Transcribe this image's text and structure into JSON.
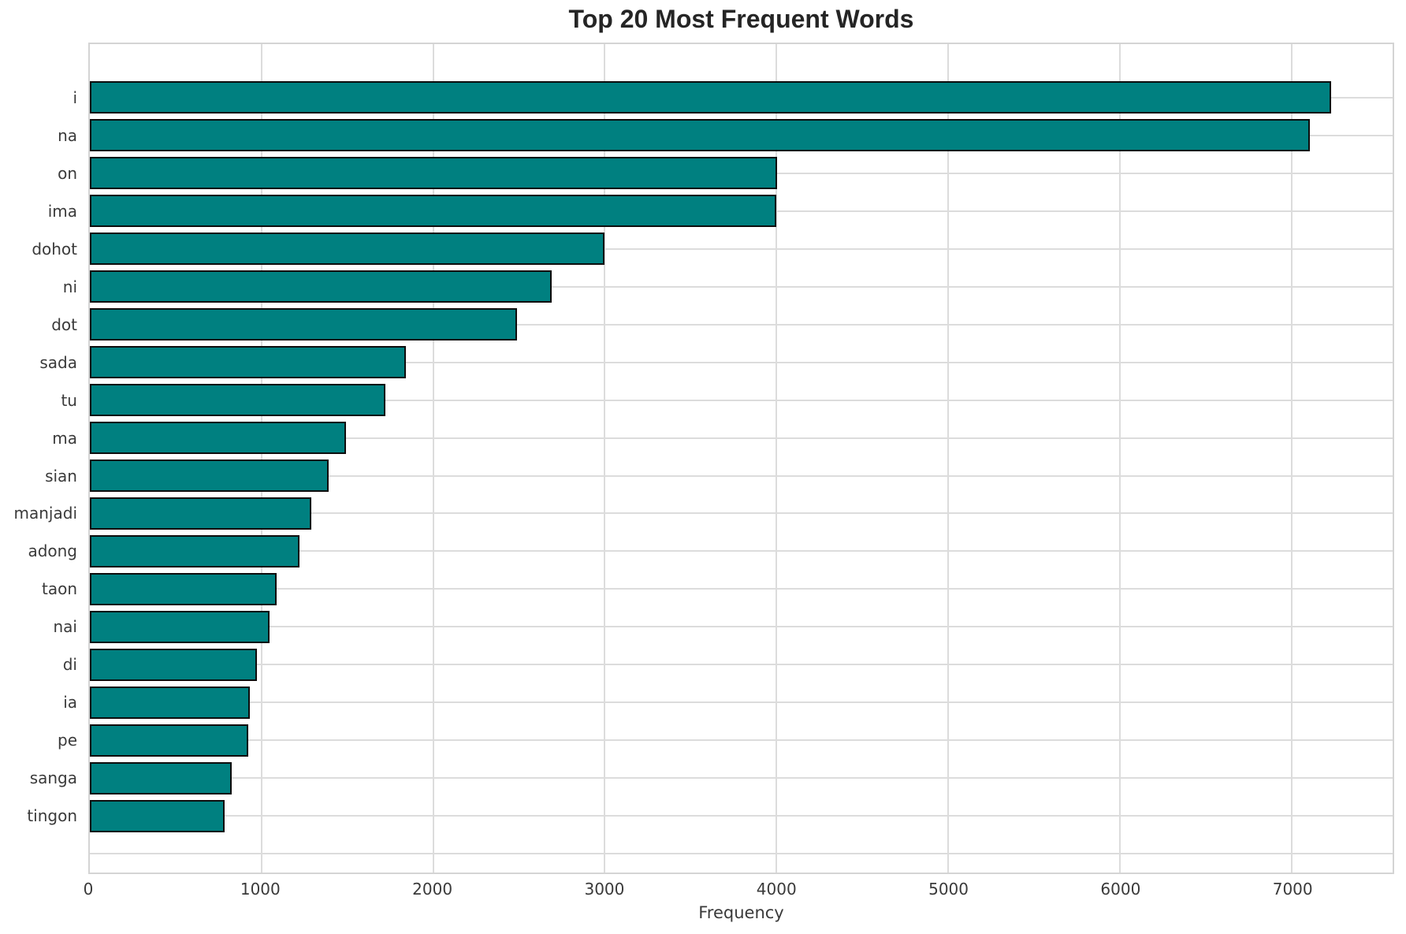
{
  "chart_data": {
    "type": "bar",
    "orientation": "horizontal",
    "title": "Top 20 Most Frequent Words",
    "xlabel": "Frequency",
    "ylabel": "",
    "categories": [
      "i",
      "na",
      "on",
      "ima",
      "dohot",
      "ni",
      "dot",
      "sada",
      "tu",
      "ma",
      "sian",
      "manjadi",
      "adong",
      "taon",
      "nai",
      "di",
      "ia",
      "pe",
      "sanga",
      "tingon"
    ],
    "values": [
      7230,
      7110,
      4005,
      4000,
      3000,
      2690,
      2490,
      1840,
      1720,
      1490,
      1390,
      1290,
      1220,
      1090,
      1045,
      975,
      930,
      925,
      825,
      785
    ],
    "x_ticks": [
      0,
      1000,
      2000,
      3000,
      4000,
      5000,
      6000,
      7000
    ],
    "xlim": [
      0,
      7590
    ],
    "grid": true,
    "legend": "none",
    "colors": {
      "bar_fill": "#008080",
      "bar_edge": "#0d0d0d",
      "grid_line": "#dcdcdc",
      "spine": "#d4d4d4",
      "text": "#3a3a3a",
      "title_text": "#252525",
      "background": "#ffffff"
    }
  }
}
